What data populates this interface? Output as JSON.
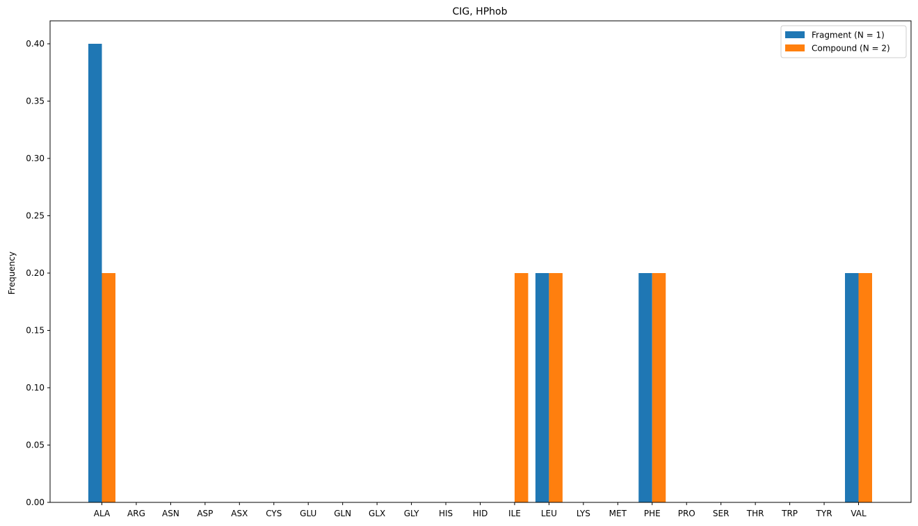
{
  "chart_data": {
    "type": "bar",
    "title": "CIG, HPhob",
    "xlabel": "",
    "ylabel": "Frequency",
    "ylim": [
      0,
      0.42
    ],
    "yticks": [
      "0.00",
      "0.05",
      "0.10",
      "0.15",
      "0.20",
      "0.25",
      "0.30",
      "0.35",
      "0.40"
    ],
    "grid": false,
    "legend_position": "top-right",
    "categories": [
      "ALA",
      "ARG",
      "ASN",
      "ASP",
      "ASX",
      "CYS",
      "GLU",
      "GLN",
      "GLX",
      "GLY",
      "HIS",
      "HID",
      "ILE",
      "LEU",
      "LYS",
      "MET",
      "PHE",
      "PRO",
      "SER",
      "THR",
      "TRP",
      "TYR",
      "VAL"
    ],
    "series": [
      {
        "name": "Fragment (N = 1)",
        "color": "#1f77b4",
        "values": [
          0.4,
          0,
          0,
          0,
          0,
          0,
          0,
          0,
          0,
          0,
          0,
          0,
          0,
          0.2,
          0,
          0,
          0.2,
          0,
          0,
          0,
          0,
          0,
          0.2
        ]
      },
      {
        "name": "Compound (N = 2)",
        "color": "#ff7f0e",
        "values": [
          0.2,
          0,
          0,
          0,
          0,
          0,
          0,
          0,
          0,
          0,
          0,
          0,
          0.2,
          0.2,
          0,
          0,
          0.2,
          0,
          0,
          0,
          0,
          0,
          0.2
        ]
      }
    ]
  }
}
